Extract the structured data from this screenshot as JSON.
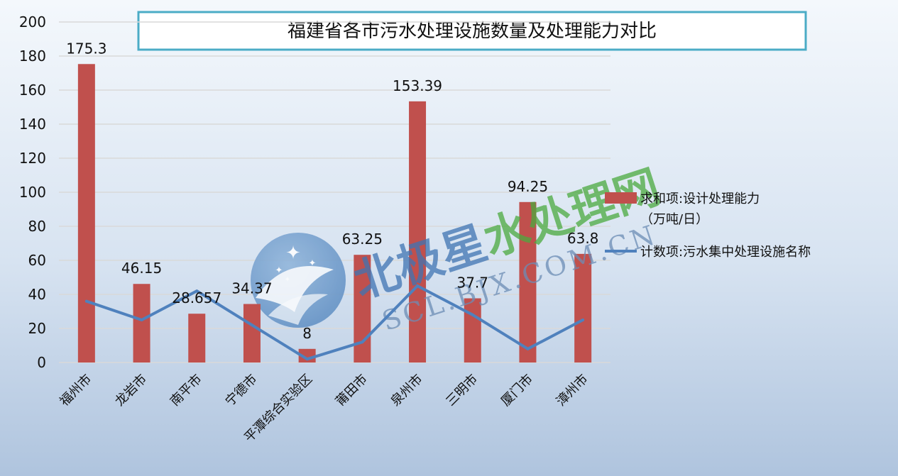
{
  "chart_data": {
    "type": "bar",
    "title": "福建省各市污水处理设施数量及处理能力对比",
    "categories": [
      "福州市",
      "龙岩市",
      "南平市",
      "宁德市",
      "平潭综合实验区",
      "莆田市",
      "泉州市",
      "三明市",
      "厦门市",
      "漳州市"
    ],
    "series": [
      {
        "name": "求和项:设计处理能力（万吨/日）",
        "type": "bar",
        "values": [
          175.3,
          46.15,
          28.657,
          34.37,
          8,
          63.25,
          153.39,
          37.7,
          94.25,
          63.8
        ],
        "labels": [
          "175.3",
          "46.15",
          "28.657",
          "34.37",
          "8",
          "63.25",
          "153.39",
          "37.7",
          "94.25",
          "63.8"
        ],
        "color": "#C0504D"
      },
      {
        "name": "计数项:污水集中处理设施名称",
        "type": "line",
        "values": [
          36,
          25,
          42,
          22,
          2,
          12,
          45,
          28,
          8,
          25
        ],
        "color": "#4F81BD"
      }
    ],
    "legend": {
      "bar_line1": "求和项:设计处理能力",
      "bar_line2": "（万吨/日）",
      "line_label": "计数项:污水集中处理设施名称",
      "position": "right"
    },
    "ylim": [
      0,
      200
    ],
    "yticks": [
      0,
      20,
      40,
      60,
      80,
      100,
      120,
      140,
      160,
      180,
      200
    ],
    "grid": true
  },
  "watermark": {
    "text_main": "北极星",
    "text_accent": "水处理网",
    "text_url": "SCL.BJX.COM.CN",
    "color_main": "#3F74B3",
    "color_accent": "#4BAA3F"
  },
  "colors": {
    "title_border": "#4BACC6",
    "grid": "#D9D9D9"
  }
}
